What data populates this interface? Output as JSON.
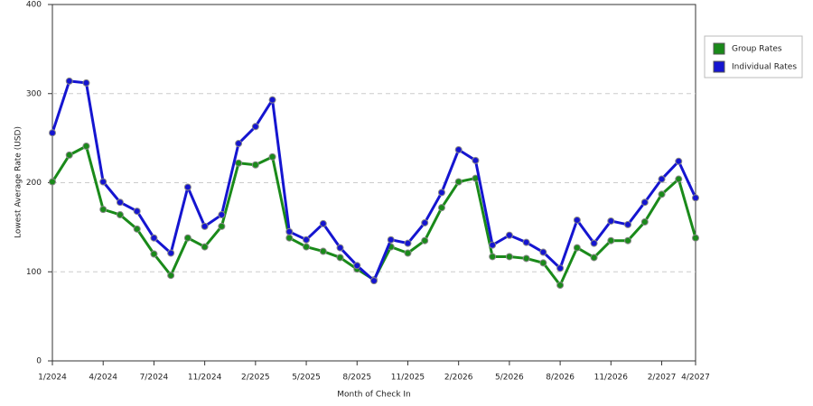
{
  "chart_data": {
    "type": "line",
    "x_label": "Month of Check In",
    "y_label": "Lowest Average Rate (USD)",
    "categories": [
      "1/2024",
      null,
      null,
      "4/2024",
      null,
      null,
      "7/2024",
      null,
      null,
      "11/2024",
      null,
      null,
      "2/2025",
      null,
      null,
      "5/2025",
      null,
      null,
      "8/2025",
      null,
      null,
      "11/2025",
      null,
      null,
      "2/2026",
      null,
      null,
      "5/2026",
      null,
      null,
      "8/2026",
      null,
      null,
      "11/2026",
      null,
      null,
      "2/2027",
      null,
      "4/2027"
    ],
    "series": [
      {
        "name": "Group Rates",
        "color": "#1a8a1a",
        "values": [
          201,
          231,
          241,
          170,
          164,
          148,
          120,
          96,
          138,
          128,
          151,
          222,
          220,
          229,
          138,
          128,
          123,
          116,
          103,
          91,
          128,
          121,
          135,
          172,
          201,
          205,
          117,
          117,
          115,
          110,
          85,
          127,
          116,
          135,
          135,
          156,
          187,
          204,
          138
        ]
      },
      {
        "name": "Individual Rates",
        "color": "#1515d0",
        "values": [
          256,
          314,
          312,
          201,
          178,
          168,
          138,
          121,
          195,
          151,
          164,
          244,
          263,
          293,
          145,
          136,
          154,
          127,
          107,
          90,
          136,
          132,
          155,
          189,
          237,
          225,
          130,
          141,
          133,
          122,
          104,
          158,
          132,
          157,
          153,
          178,
          204,
          224,
          183
        ]
      }
    ],
    "ylim": [
      0,
      400
    ],
    "yticks": [
      0,
      100,
      200,
      300,
      400
    ],
    "grid": true,
    "legend": "right"
  }
}
